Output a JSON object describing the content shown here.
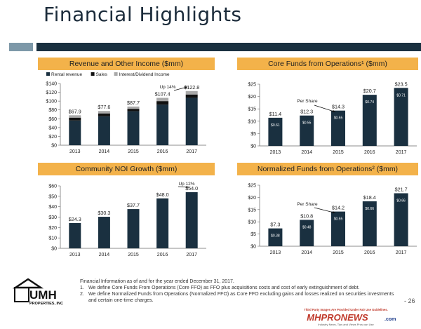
{
  "page": {
    "title": "Financial Highlights",
    "page_number": "- 26"
  },
  "footnotes": {
    "intro": "Financial Information as of and for the year ended December 31, 2017.",
    "items": [
      {
        "num": "1.",
        "text": "We define Core Funds From Operations (Core FFO) as FFO plus acquisitions costs and cost of early extinguishment of debt."
      },
      {
        "num": "2.",
        "text": "We define Normalized Funds from Operations (Normalized FFO) as Core FFO excluding gains and losses realized on securities investments and certain one-time charges."
      }
    ]
  },
  "logo": {
    "text_main": "UMH",
    "text_sub": "PROPERTIES, INC"
  },
  "watermark": {
    "top": "Third Party Images Are Provided Under Fair Use Guidelines.",
    "brand": "MHPRONEWS",
    "brand_suffix": ".com",
    "tagline": "Industry News, Tips and Views Pros can Use"
  },
  "colors": {
    "accent": "#f3b24a",
    "bar": "#1a3040",
    "bar_sales": "#111111",
    "bar_interest": "#a9a9a9",
    "band_dark": "#1a3040",
    "band_light": "#7d98a8"
  },
  "chart_data": [
    {
      "id": "revenue",
      "type": "bar",
      "stacked": true,
      "title": "Revenue and Other Income ($mm)",
      "categories": [
        "2013",
        "2014",
        "2015",
        "2016",
        "2017"
      ],
      "series": [
        {
          "name": "Rental revenue",
          "values": [
            56.0,
            65.5,
            77.0,
            92.0,
            107.5
          ],
          "color": "#1a3040"
        },
        {
          "name": "Sales",
          "values": [
            6.5,
            6.6,
            5.5,
            8.0,
            7.5
          ],
          "color": "#111111"
        },
        {
          "name": "Interest/Dividend Income",
          "values": [
            5.4,
            5.5,
            5.2,
            7.4,
            7.8
          ],
          "color": "#a9a9a9"
        }
      ],
      "totals": [
        67.9,
        77.6,
        87.7,
        107.4,
        122.8
      ],
      "total_labels": [
        "$67.9",
        "$77.6",
        "$87.7",
        "$107.4",
        "$122.8"
      ],
      "y_ticks": [
        "$0",
        "$20",
        "$40",
        "$60",
        "$80",
        "$100",
        "$120",
        "$140"
      ],
      "ylim": [
        0,
        140
      ],
      "legend_position": "top",
      "annotation": "Up 14%"
    },
    {
      "id": "core_ffo",
      "type": "bar",
      "title": "Core Funds from Operations¹ ($mm)",
      "categories": [
        "2013",
        "2014",
        "2015",
        "2016",
        "2017"
      ],
      "values": [
        11.4,
        12.3,
        14.3,
        20.7,
        23.5
      ],
      "value_labels": [
        "$11.4",
        "$12.3",
        "$14.3",
        "$20.7",
        "$23.5"
      ],
      "per_share": [
        "$0.61",
        "$0.55",
        "$0.55",
        "$0.74",
        "$0.71"
      ],
      "y_ticks": [
        "$0",
        "$5",
        "$10",
        "$15",
        "$20",
        "$25"
      ],
      "ylim": [
        0,
        25
      ],
      "annotation": "Per Share"
    },
    {
      "id": "noi",
      "type": "bar",
      "title": "Community NOI Growth ($mm)",
      "categories": [
        "2013",
        "2014",
        "2015",
        "2016",
        "2017"
      ],
      "values": [
        24.3,
        30.3,
        37.7,
        48.0,
        54.0
      ],
      "value_labels": [
        "$24.3",
        "$30.3",
        "$37.7",
        "$48.0",
        "$54.0"
      ],
      "y_ticks": [
        "$0",
        "$10",
        "$20",
        "$30",
        "$40",
        "$50",
        "$60"
      ],
      "ylim": [
        0,
        60
      ],
      "annotation": "Up 12%"
    },
    {
      "id": "normalized_ffo",
      "type": "bar",
      "title": "Normalized Funds from Operations² ($mm)",
      "categories": [
        "2013",
        "2014",
        "2015",
        "2016",
        "2017"
      ],
      "values": [
        7.3,
        10.8,
        14.2,
        18.4,
        21.7
      ],
      "value_labels": [
        "$7.3",
        "$10.8",
        "$14.2",
        "$18.4",
        "$21.7"
      ],
      "per_share": [
        "$0.38",
        "$0.48",
        "$0.55",
        "$0.66",
        "$0.66"
      ],
      "y_ticks": [
        "$0",
        "$5",
        "$10",
        "$15",
        "$20",
        "$25"
      ],
      "ylim": [
        0,
        25
      ],
      "annotation": "Per Share"
    }
  ]
}
